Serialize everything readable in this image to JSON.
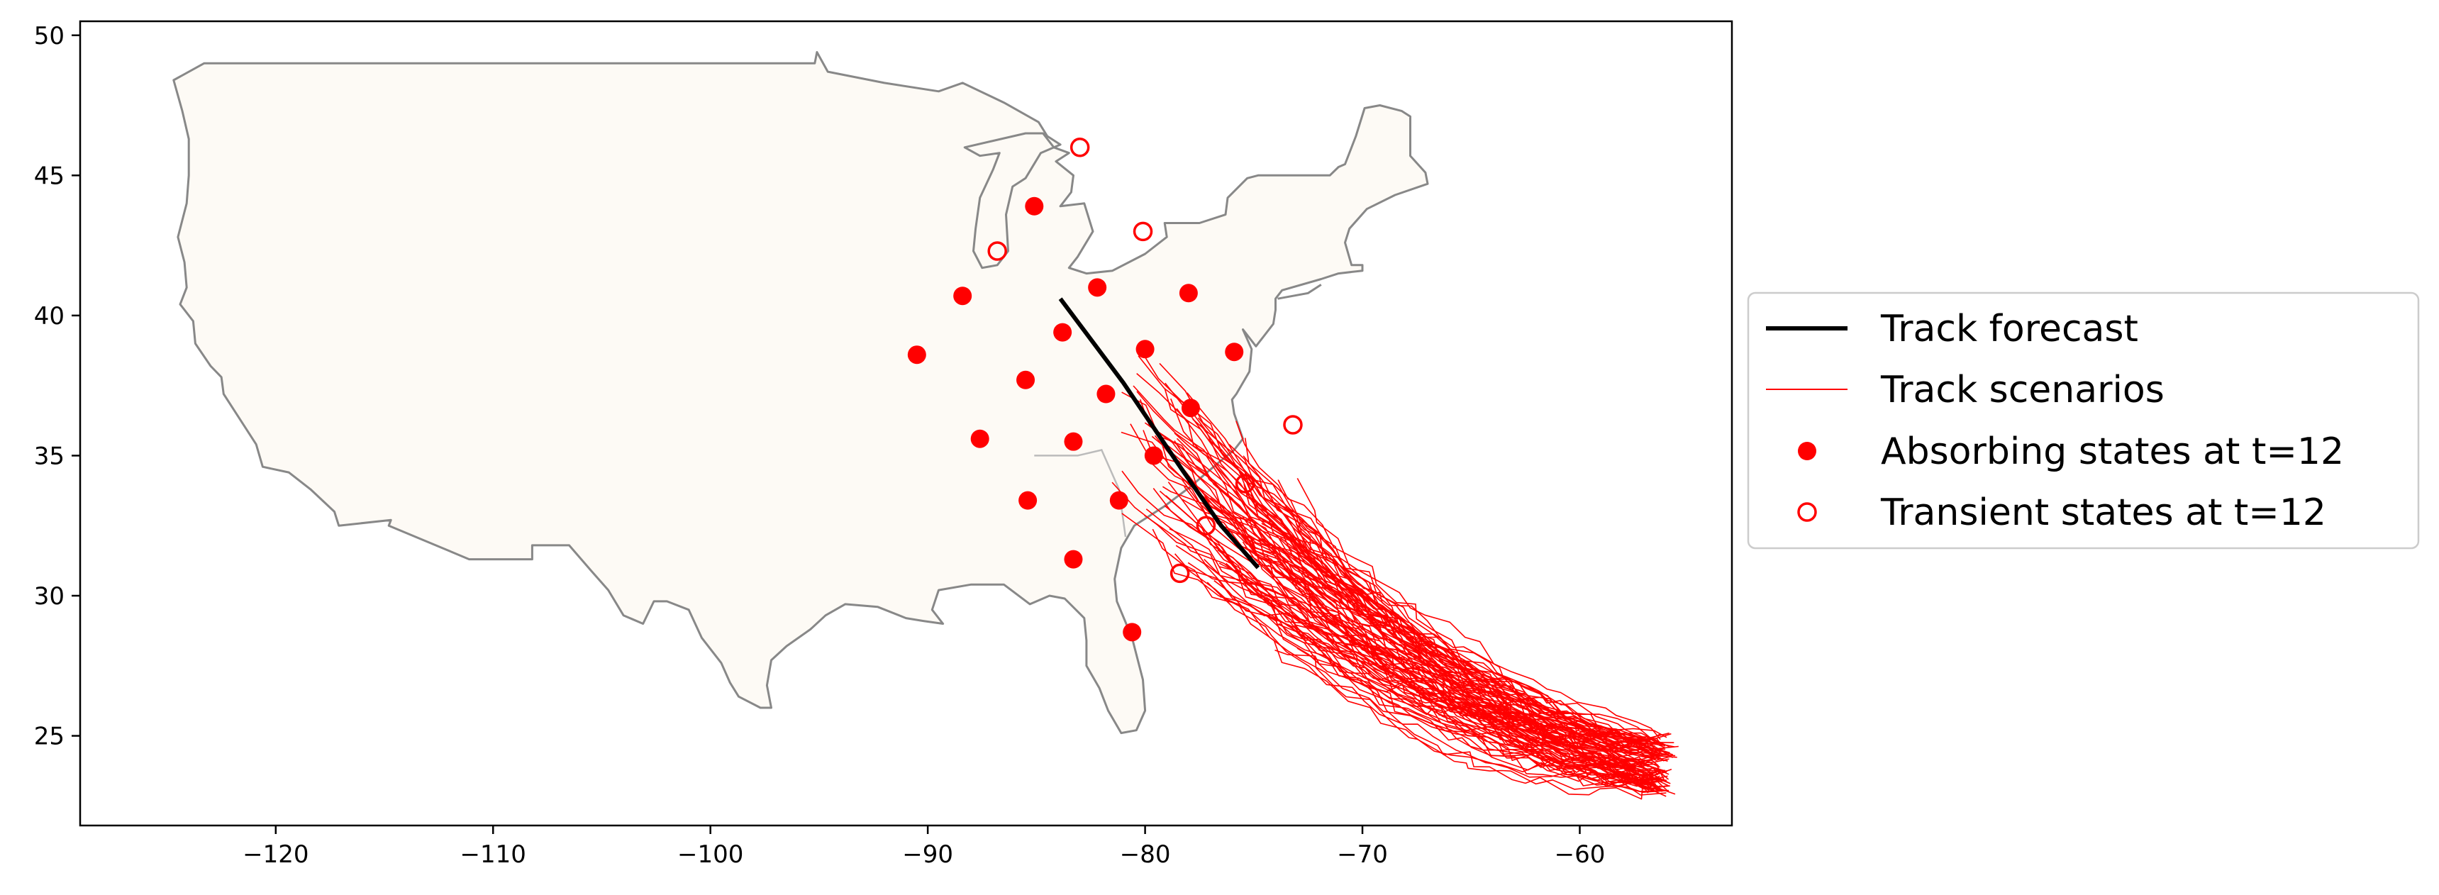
{
  "chart_data": {
    "type": "scatter",
    "title": "",
    "xlabel": "",
    "ylabel": "",
    "xlim": [
      -129,
      -53
    ],
    "ylim": [
      21.8,
      50.5
    ],
    "xticks": [
      -120,
      -110,
      -100,
      -90,
      -80,
      -70,
      -60
    ],
    "yticks": [
      25,
      30,
      35,
      40,
      45,
      50
    ],
    "xtick_labels": [
      "−120",
      "−110",
      "−100",
      "−90",
      "−80",
      "−70",
      "−60"
    ],
    "ytick_labels": [
      "25",
      "30",
      "35",
      "40",
      "45",
      "50"
    ],
    "grid": false,
    "background_map": "contiguous United States",
    "legend": {
      "position": "right",
      "entries": [
        {
          "label": "Track forecast",
          "marker": "line",
          "color": "#000000"
        },
        {
          "label": "Track scenarios",
          "marker": "thin-line",
          "color": "#ff0000"
        },
        {
          "label": "Absorbing states at t=12",
          "marker": "filled-circle",
          "color": "#ff0000"
        },
        {
          "label": "Transient states at t=12",
          "marker": "hollow-circle",
          "color": "#ff0000"
        }
      ]
    },
    "track_forecast": {
      "x": [
        -83.9,
        -81.0,
        -78.3,
        -76.5,
        -74.8
      ],
      "y": [
        40.6,
        37.6,
        34.5,
        32.5,
        31.0
      ]
    },
    "track_scenarios": {
      "count": 100,
      "origin_region": {
        "x": [
          -56.5,
          -55.8
        ],
        "y": [
          23.0,
          25.0
        ]
      },
      "end_region": {
        "x": [
          -81.5,
          -73.0
        ],
        "y": [
          27.5,
          40.5
        ]
      }
    },
    "absorbing_states": {
      "x": [
        -85.1,
        -88.4,
        -90.5,
        -82.2,
        -78.0,
        -83.8,
        -80.0,
        -75.9,
        -85.5,
        -81.8,
        -87.6,
        -77.9,
        -83.3,
        -79.6,
        -85.4,
        -81.2,
        -83.3,
        -80.6
      ],
      "y": [
        43.9,
        40.7,
        38.6,
        41.0,
        40.8,
        39.4,
        38.8,
        38.7,
        37.7,
        37.2,
        35.6,
        36.7,
        35.5,
        35.0,
        33.4,
        33.4,
        31.3,
        28.7
      ]
    },
    "transient_states": {
      "x": [
        -83.0,
        -86.8,
        -80.1,
        -73.2,
        -75.4,
        -77.2,
        -78.4
      ],
      "y": [
        46.0,
        42.3,
        43.0,
        36.1,
        34.0,
        32.5,
        30.8
      ]
    },
    "colors": {
      "land_fill": "#fdfaf5",
      "coast": "#888888",
      "scenario": "#ff0000",
      "forecast": "#000000"
    }
  }
}
